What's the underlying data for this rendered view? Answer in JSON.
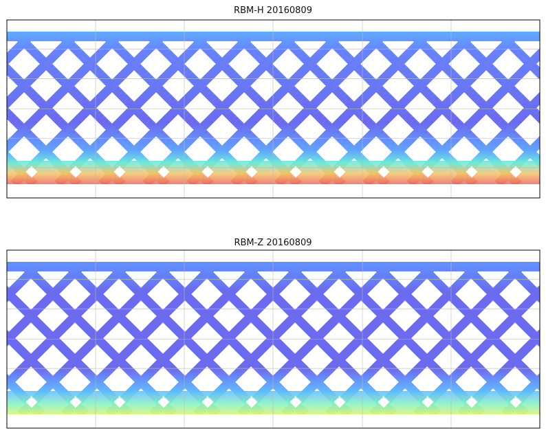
{
  "panels": [
    {
      "title": "RBM-H 20160809"
    },
    {
      "title": "RBM-Z 20160809"
    }
  ]
}
